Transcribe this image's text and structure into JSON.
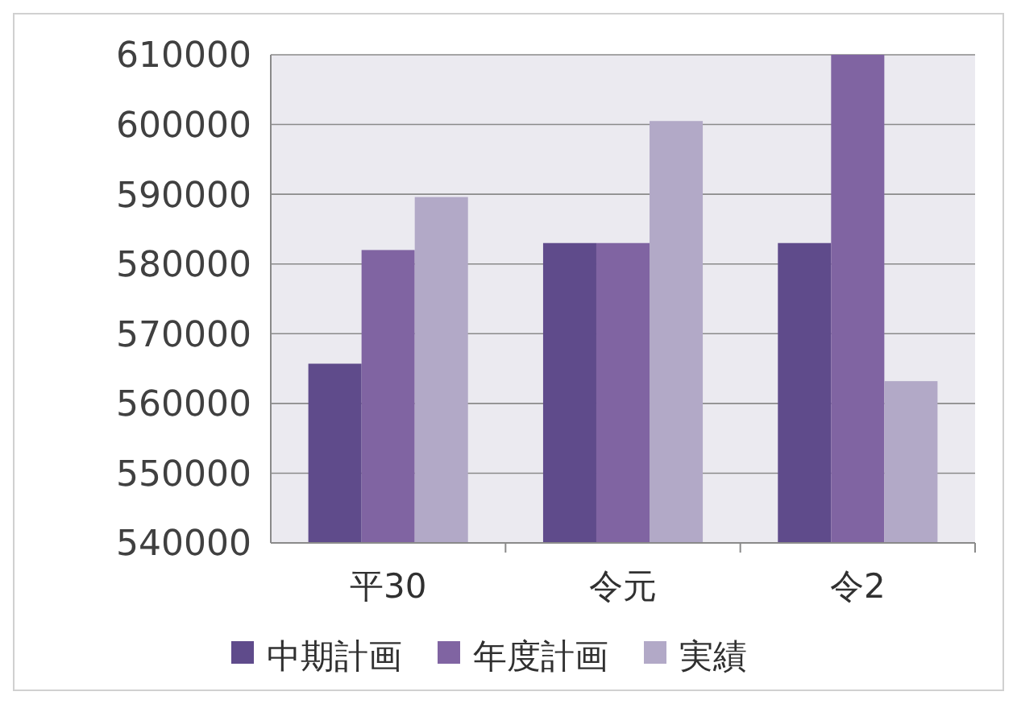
{
  "chart_data": {
    "type": "bar",
    "categories": [
      "平30",
      "令元",
      "令2"
    ],
    "series": [
      {
        "name": "中期計画",
        "color": "#5f4b8b",
        "values": [
          565700,
          583000,
          583000
        ]
      },
      {
        "name": "年度計画",
        "color": "#8064a2",
        "values": [
          582000,
          583000,
          610000
        ]
      },
      {
        "name": "実績",
        "color": "#b2a9c7",
        "values": [
          589600,
          600500,
          563200
        ]
      }
    ],
    "ylim": [
      540000,
      610000
    ],
    "yticks": [
      540000,
      550000,
      560000,
      570000,
      580000,
      590000,
      600000,
      610000
    ],
    "grid": "y",
    "legend": "bottom"
  }
}
